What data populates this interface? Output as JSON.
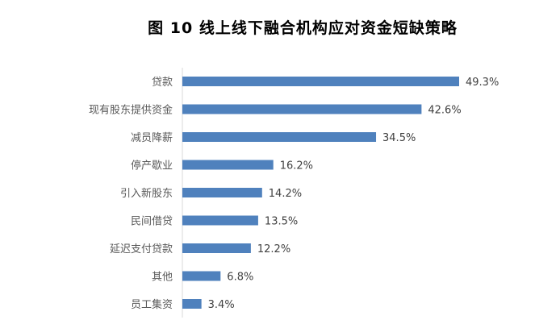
{
  "chart_data": {
    "type": "bar",
    "orientation": "horizontal",
    "title": "图 10  线上线下融合机构应对资金短缺策略",
    "categories": [
      "贷款",
      "现有股东提供资金",
      "减员降薪",
      "停产歇业",
      "引入新股东",
      "民间借贷",
      "延迟支付贷款",
      "其他",
      "员工集资"
    ],
    "values": [
      49.3,
      42.6,
      34.5,
      16.2,
      14.2,
      13.5,
      12.2,
      6.8,
      3.4
    ],
    "labels": [
      "49.3%",
      "42.6%",
      "34.5%",
      "16.2%",
      "14.2%",
      "13.5%",
      "12.2%",
      "6.8%",
      "3.4%"
    ],
    "unit": "%",
    "grid": false,
    "legend": "none",
    "colors": {
      "bar": "#4f81bd",
      "axis": "#d9d9d9",
      "text": "#595959"
    }
  }
}
